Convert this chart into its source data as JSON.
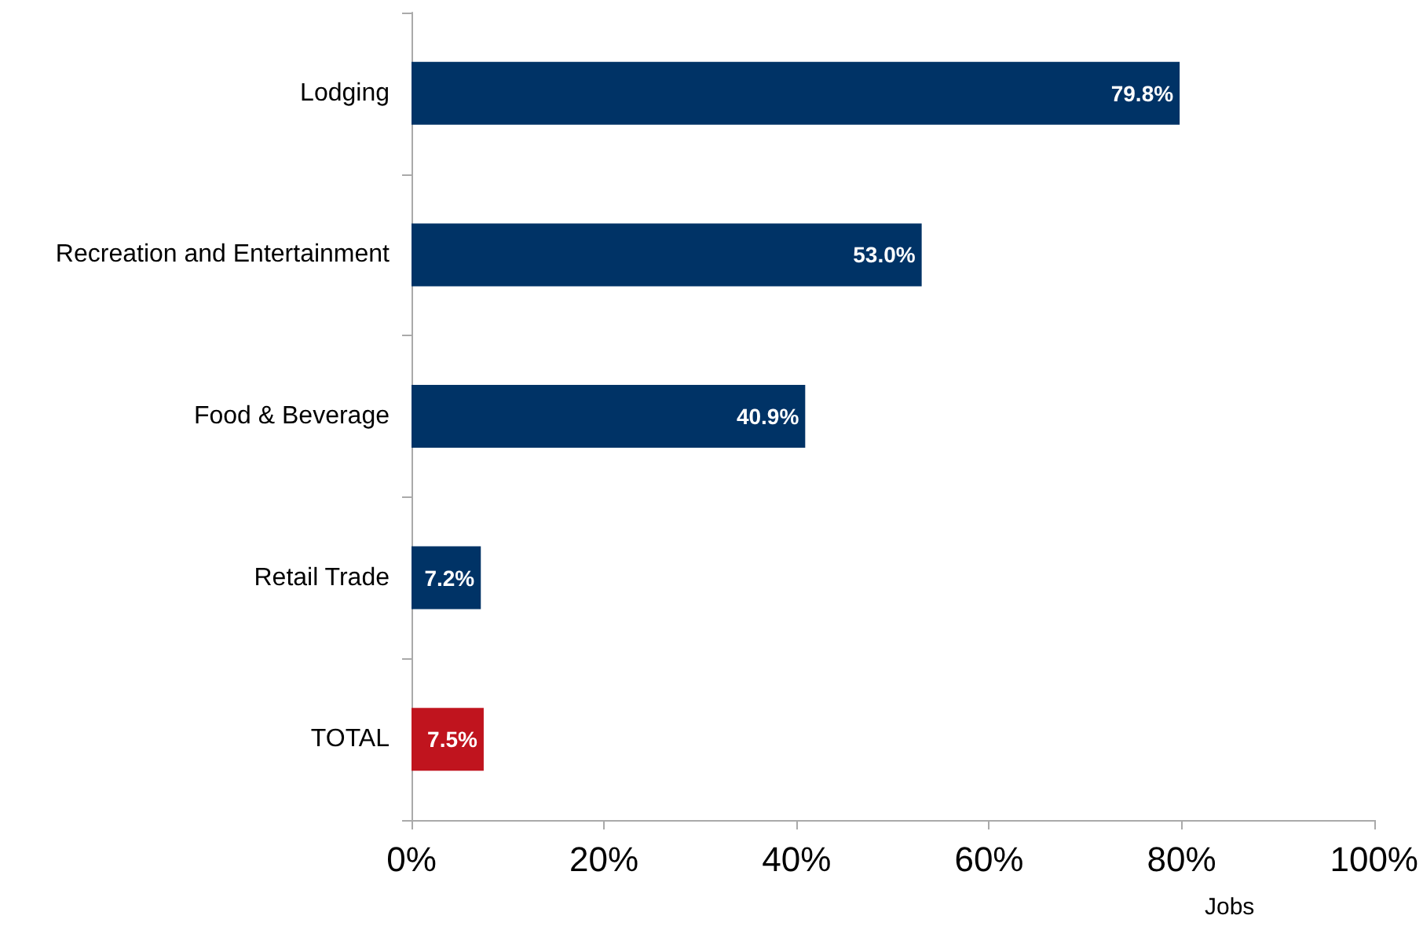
{
  "chart_data": {
    "type": "bar",
    "orientation": "horizontal",
    "xlabel": "Jobs",
    "categories": [
      "Lodging",
      "Recreation and Entertainment",
      "Food & Beverage",
      "Retail Trade",
      "TOTAL"
    ],
    "values": [
      79.8,
      53.0,
      40.9,
      7.2,
      7.5
    ],
    "colors": [
      "#003366",
      "#003366",
      "#003366",
      "#003366",
      "#c0141e"
    ],
    "value_labels": [
      "79.8%",
      "53.0%",
      "40.9%",
      "7.2%",
      "7.5%"
    ],
    "xlim": [
      0,
      100
    ],
    "xticks": [
      {
        "value": 0,
        "label": "0%"
      },
      {
        "value": 20,
        "label": "20%"
      },
      {
        "value": 40,
        "label": "40%"
      },
      {
        "value": 60,
        "label": "60%"
      },
      {
        "value": 80,
        "label": "80%"
      },
      {
        "value": 100,
        "label": "100%"
      }
    ],
    "grid": false
  }
}
